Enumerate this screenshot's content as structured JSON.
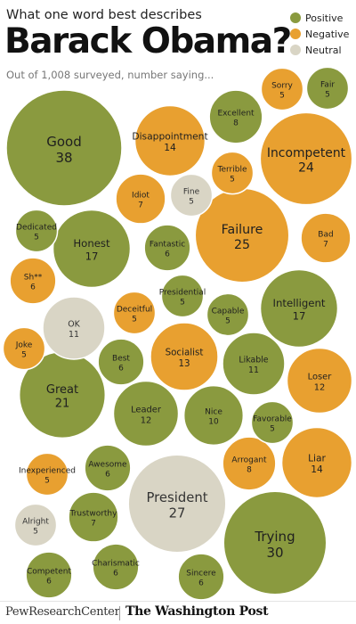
{
  "header": {
    "top_line": "What one word best describes",
    "title": "Barack Obama?",
    "subtitle": "Out of 1,008 surveyed, number saying..."
  },
  "legend": [
    {
      "label": "Positive",
      "category": "positive"
    },
    {
      "label": "Negative",
      "category": "negative"
    },
    {
      "label": "Neutral",
      "category": "neutral"
    }
  ],
  "colors": {
    "positive": "#8a9a3f",
    "negative": "#e8a030",
    "neutral": "#d9d5c5"
  },
  "footer": {
    "source_1": "PewResearchCenter",
    "source_2": "The Washington Post"
  },
  "chart_data": {
    "type": "bubble",
    "title": "Barack Obama?",
    "subtitle": "Out of 1,008 surveyed, number saying...",
    "size_metric": "count",
    "bubbles": [
      {
        "word": "Good",
        "count": 38,
        "sentiment": "positive"
      },
      {
        "word": "Trying",
        "count": 30,
        "sentiment": "positive"
      },
      {
        "word": "President",
        "count": 27,
        "sentiment": "neutral"
      },
      {
        "word": "Failure",
        "count": 25,
        "sentiment": "negative"
      },
      {
        "word": "Incompetent",
        "count": 24,
        "sentiment": "negative"
      },
      {
        "word": "Great",
        "count": 21,
        "sentiment": "positive"
      },
      {
        "word": "Honest",
        "count": 17,
        "sentiment": "positive"
      },
      {
        "word": "Intelligent",
        "count": 17,
        "sentiment": "positive"
      },
      {
        "word": "Disappointment",
        "count": 14,
        "sentiment": "negative"
      },
      {
        "word": "Liar",
        "count": 14,
        "sentiment": "negative"
      },
      {
        "word": "Socialist",
        "count": 13,
        "sentiment": "negative"
      },
      {
        "word": "Leader",
        "count": 12,
        "sentiment": "positive"
      },
      {
        "word": "Loser",
        "count": 12,
        "sentiment": "negative"
      },
      {
        "word": "OK",
        "count": 11,
        "sentiment": "neutral"
      },
      {
        "word": "Likable",
        "count": 11,
        "sentiment": "positive"
      },
      {
        "word": "Nice",
        "count": 10,
        "sentiment": "positive"
      },
      {
        "word": "Excellent",
        "count": 8,
        "sentiment": "positive"
      },
      {
        "word": "Arrogant",
        "count": 8,
        "sentiment": "negative"
      },
      {
        "word": "Idiot",
        "count": 7,
        "sentiment": "negative"
      },
      {
        "word": "Bad",
        "count": 7,
        "sentiment": "negative"
      },
      {
        "word": "Trustworthy",
        "count": 7,
        "sentiment": "positive"
      },
      {
        "word": "Fantastic",
        "count": 6,
        "sentiment": "positive"
      },
      {
        "word": "Sh**",
        "count": 6,
        "sentiment": "negative"
      },
      {
        "word": "Best",
        "count": 6,
        "sentiment": "positive"
      },
      {
        "word": "Awesome",
        "count": 6,
        "sentiment": "positive"
      },
      {
        "word": "Competent",
        "count": 6,
        "sentiment": "positive"
      },
      {
        "word": "Charismatic",
        "count": 6,
        "sentiment": "positive"
      },
      {
        "word": "Sincere",
        "count": 6,
        "sentiment": "positive"
      },
      {
        "word": "Sorry",
        "count": 5,
        "sentiment": "negative"
      },
      {
        "word": "Fair",
        "count": 5,
        "sentiment": "positive"
      },
      {
        "word": "Terrible",
        "count": 5,
        "sentiment": "negative"
      },
      {
        "word": "Fine",
        "count": 5,
        "sentiment": "neutral"
      },
      {
        "word": "Dedicated",
        "count": 5,
        "sentiment": "positive"
      },
      {
        "word": "Presidential",
        "count": 5,
        "sentiment": "positive"
      },
      {
        "word": "Deceitful",
        "count": 5,
        "sentiment": "negative"
      },
      {
        "word": "Capable",
        "count": 5,
        "sentiment": "positive"
      },
      {
        "word": "Joke",
        "count": 5,
        "sentiment": "negative"
      },
      {
        "word": "Favorable",
        "count": 5,
        "sentiment": "positive"
      },
      {
        "word": "Inexperienced",
        "count": 5,
        "sentiment": "negative"
      },
      {
        "word": "Alright",
        "count": 5,
        "sentiment": "neutral"
      }
    ]
  }
}
